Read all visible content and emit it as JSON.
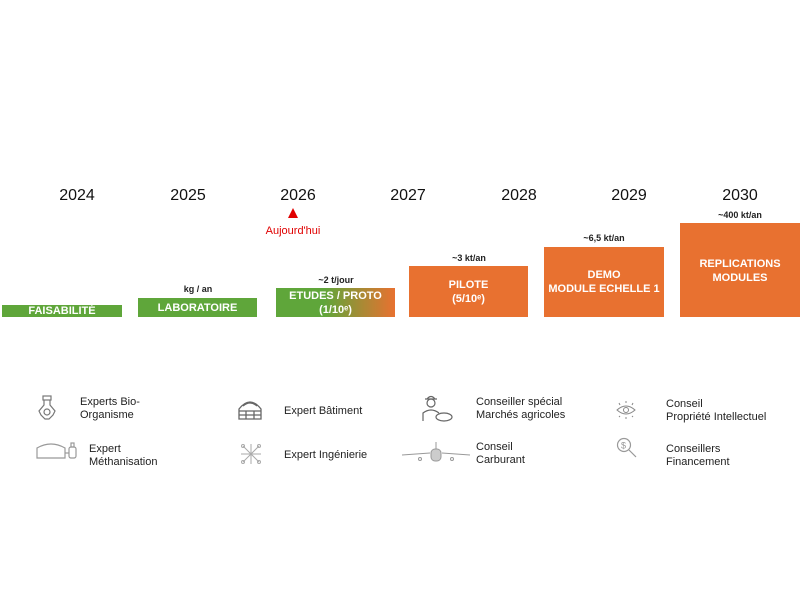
{
  "years": [
    "2024",
    "2025",
    "2026",
    "2027",
    "2028",
    "2029",
    "2030"
  ],
  "today": {
    "label": "Aujourd'hui",
    "color": "#e00000"
  },
  "colors": {
    "green": "#5fa63a",
    "orange": "#e87130"
  },
  "phases": [
    {
      "line1": "FAISABILITÉ",
      "line2": "",
      "capacity": ""
    },
    {
      "line1": "LABORATOIRE",
      "line2": "",
      "capacity": "kg / an"
    },
    {
      "line1": "ETUDES / PROTO",
      "line2": "(1/10ᵉ)",
      "capacity": "~2 t/jour"
    },
    {
      "line1": "PILOTE",
      "line2": "(5/10ᵉ)",
      "capacity": "~3 kt/an"
    },
    {
      "line1": "DEMO",
      "line2": "MODULE ECHELLE 1",
      "capacity": "~6,5 kt/an"
    },
    {
      "line1": "REPLICATIONS",
      "line2": "MODULES",
      "capacity": "~400 kt/an"
    }
  ],
  "experts": [
    {
      "icon": "flask-gear-icon",
      "line1": "Experts Bio-",
      "line2": "Organisme"
    },
    {
      "icon": "greenhouse-icon",
      "line1": "Expert Bâtiment",
      "line2": ""
    },
    {
      "icon": "farmer-pig-icon",
      "line1": "Conseiller spécial",
      "line2": "Marchés agricoles"
    },
    {
      "icon": "eye-icon",
      "line1": "Conseil",
      "line2": "Propriété Intellectuel"
    },
    {
      "icon": "digester-icon",
      "line1": "Expert",
      "line2": "Méthanisation"
    },
    {
      "icon": "network-icon",
      "line1": "Expert Ingénierie",
      "line2": ""
    },
    {
      "icon": "airplane-icon",
      "line1": "Conseil",
      "line2": "Carburant"
    },
    {
      "icon": "dollar-search-icon",
      "line1": "Conseillers",
      "line2": "Financement"
    }
  ]
}
